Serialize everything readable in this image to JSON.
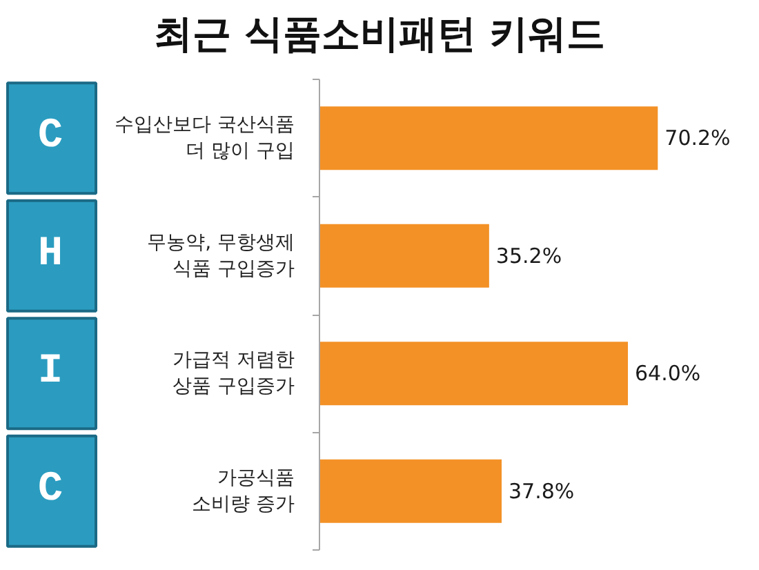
{
  "chart_data": {
    "type": "bar",
    "orientation": "horizontal",
    "title": "최근 식품소비패턴 키워드",
    "categories": [
      "수입산보다 국산식품\n더 많이 구입",
      "무농약, 무항생제\n식품 구입증가",
      "가급적 저렴한\n상품 구입증가",
      "가공식품\n소비량 증가"
    ],
    "values": [
      70.2,
      35.2,
      64.0,
      37.8
    ],
    "value_labels": [
      "70.2%",
      "35.2%",
      "64.0%",
      "37.8%"
    ],
    "color": "#f39126",
    "annotations": [
      "C",
      "H",
      "I",
      "C"
    ],
    "tick_labels": "y",
    "grid": false
  }
}
